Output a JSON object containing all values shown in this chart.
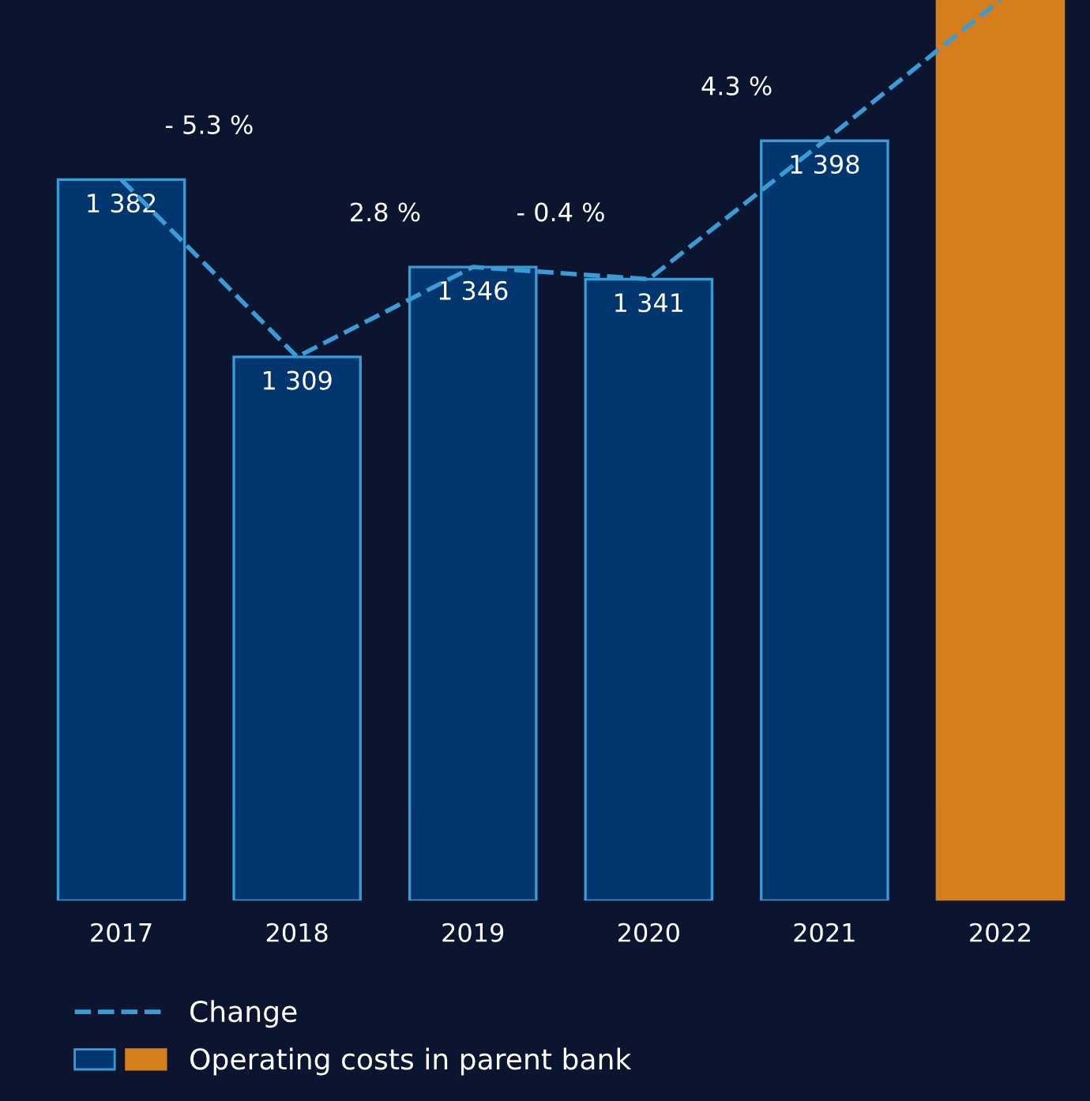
{
  "chart_data": {
    "type": "bar",
    "categories": [
      "2017",
      "2018",
      "2019",
      "2020",
      "2021",
      "2022"
    ],
    "series": [
      {
        "name": "Operating costs in parent bank",
        "values": [
          1382,
          1309,
          1346,
          1341,
          1398,
          1456
        ],
        "colors": [
          "#02366f",
          "#02366f",
          "#02366f",
          "#02366f",
          "#02366f",
          "#d57f1c"
        ],
        "value_labels": [
          "1 382",
          "1 309",
          "1 346",
          "1 341",
          "1 398",
          null
        ]
      },
      {
        "name": "Change",
        "type": "line",
        "line_style": "dashed",
        "color": "#3a9bd5",
        "values": [
          1382,
          1309,
          1346,
          1341,
          1398,
          1456
        ]
      }
    ],
    "annotations": [
      "- 5.3 %",
      "2.8 %",
      "- 0.4 %",
      "4.3 %"
    ],
    "ylim": [
      1085,
      1456
    ],
    "legend": "bottom",
    "grid": false
  }
}
